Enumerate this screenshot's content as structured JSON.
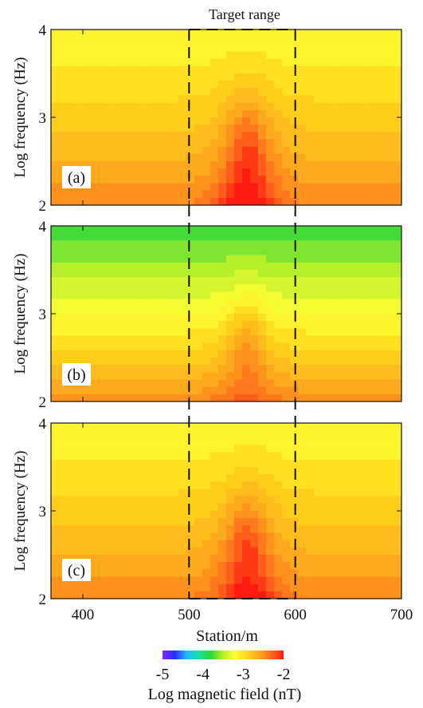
{
  "chart_data": {
    "type": "heatmap",
    "annotation": "Target range",
    "target_range": [
      500,
      600
    ],
    "x_axis": {
      "label": "Station/m",
      "range": [
        370,
        700
      ],
      "ticks": [
        "400",
        "500",
        "600",
        "700"
      ]
    },
    "colorbar": {
      "label": "Log magnetic field (nT)",
      "range": [
        -5,
        -2
      ],
      "ticks": [
        "-5",
        "-4",
        "-3",
        "-2"
      ],
      "colors": [
        "#7b2cff",
        "#2a2dff",
        "#22b9ff",
        "#17e3a3",
        "#2ed83a",
        "#b7f02a",
        "#ffff33",
        "#ffd21a",
        "#ffa51e",
        "#ff6a1c",
        "#ff1a12"
      ]
    },
    "panels": [
      {
        "label": "(a)",
        "ylabel": "Log frequency (Hz)",
        "y_range": [
          2,
          4
        ],
        "y_ticks": [
          "2",
          "3",
          "4"
        ],
        "description_values": {
          "background_low": -2.45,
          "background_high": -3.2,
          "peak_station": 555,
          "peak_value": -2.0
        }
      },
      {
        "label": "(b)",
        "ylabel": "Log frequency (Hz)",
        "y_range": [
          2,
          4
        ],
        "y_ticks": [
          "2",
          "3",
          "4"
        ],
        "description_values": {
          "background_low": -2.45,
          "background_high": -3.8,
          "peak_station": 555,
          "peak_value": -2.3
        }
      },
      {
        "label": "(c)",
        "ylabel": "Log frequency (Hz)",
        "y_range": [
          2,
          4
        ],
        "y_ticks": [
          "2",
          "3",
          "4"
        ],
        "description_values": {
          "background_low": -2.45,
          "background_high": -3.2,
          "peak_station": 555,
          "peak_value": -2.05
        }
      }
    ]
  }
}
